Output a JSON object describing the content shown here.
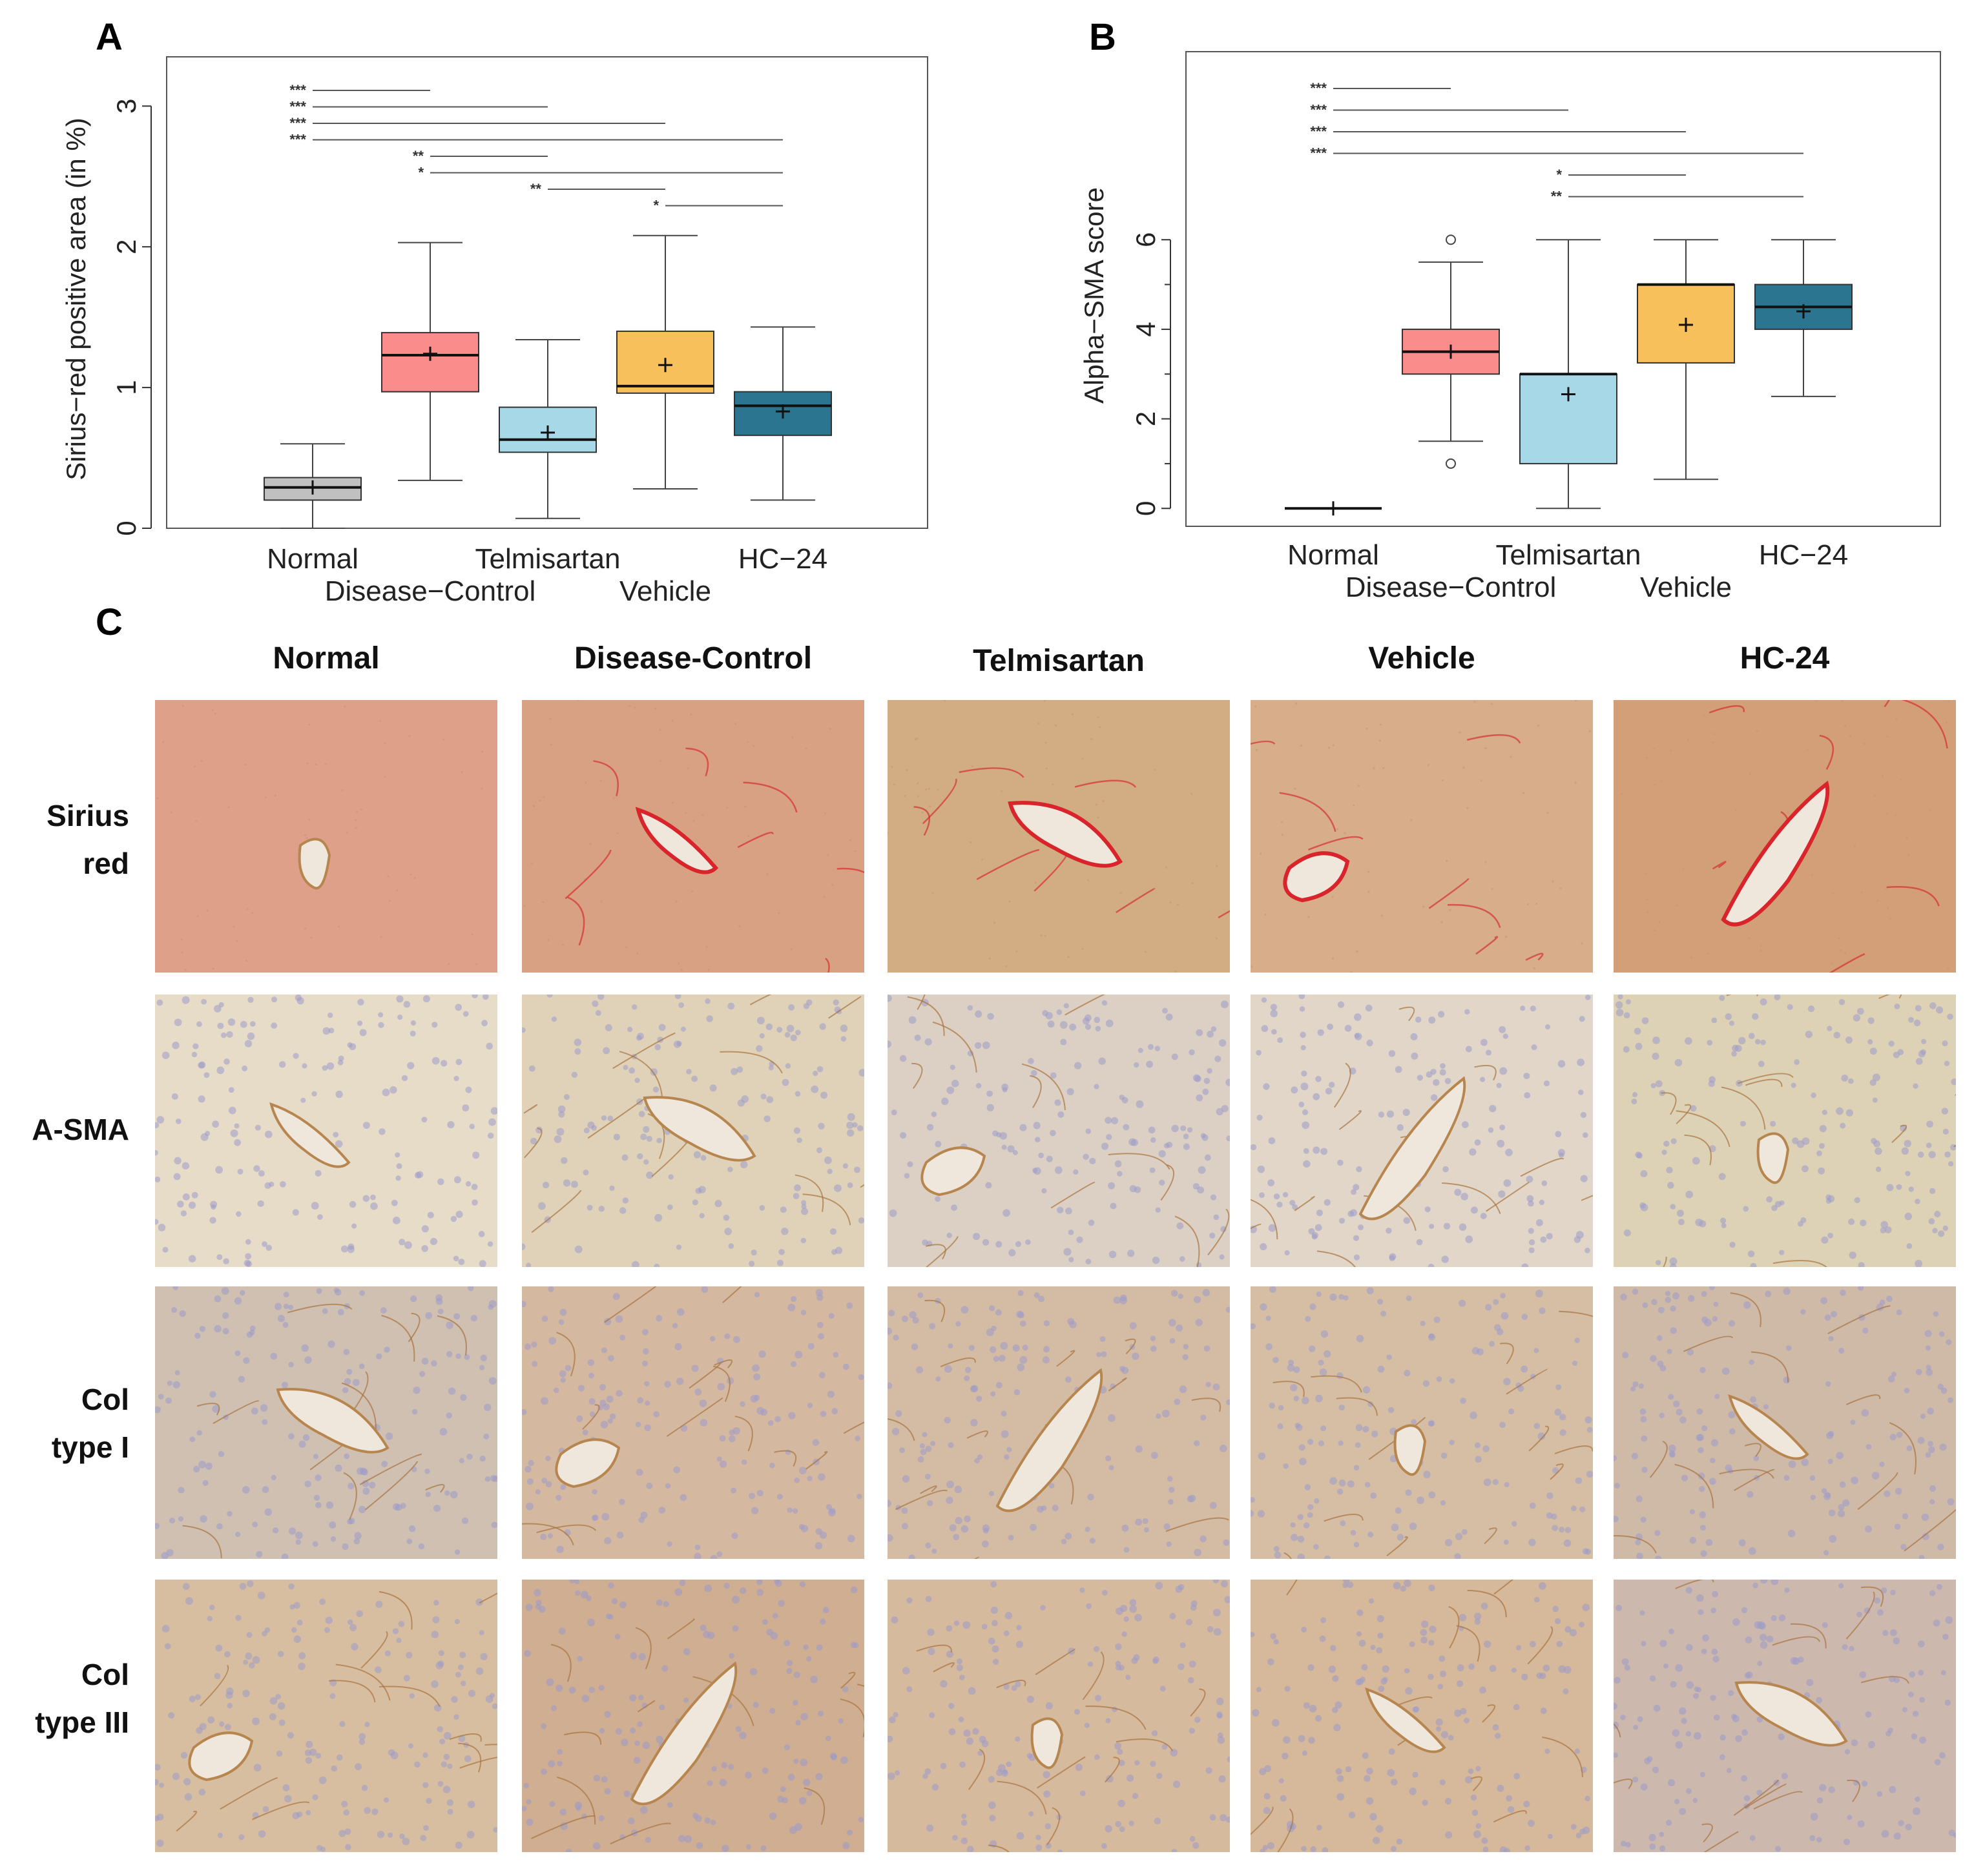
{
  "panels": {
    "a": "A",
    "b": "B",
    "c": "C"
  },
  "colors": {
    "Normal": "#c0c0c0",
    "Disease-Control": "#fa8c8c",
    "Telmisartan": "#a7d8e8",
    "Vehicle": "#f8c05a",
    "HC-24": "#2c7590"
  },
  "chart_data": [
    {
      "type": "box",
      "panel": "A",
      "ylabel": "Sirius−red positive area (in %)",
      "ylim": [
        0,
        3.35
      ],
      "yticks": [
        0,
        1,
        2,
        3
      ],
      "categories": [
        "Normal",
        "Disease−Control",
        "Telmisartan",
        "Vehicle",
        "HC−24"
      ],
      "boxes": [
        {
          "min": 0.0,
          "q1": 0.2,
          "median": 0.29,
          "q3": 0.36,
          "max": 0.6,
          "mean": 0.29
        },
        {
          "min": 0.34,
          "q1": 0.97,
          "median": 1.23,
          "q3": 1.39,
          "max": 2.03,
          "mean": 1.24
        },
        {
          "min": 0.07,
          "q1": 0.54,
          "median": 0.63,
          "q3": 0.86,
          "max": 1.34,
          "mean": 0.68
        },
        {
          "min": 0.28,
          "q1": 0.96,
          "median": 1.01,
          "q3": 1.4,
          "max": 2.08,
          "mean": 1.16
        },
        {
          "min": 0.2,
          "q1": 0.66,
          "median": 0.87,
          "q3": 0.97,
          "max": 1.43,
          "mean": 0.83
        }
      ],
      "significance": [
        {
          "from": 0,
          "to": 1,
          "label": "***"
        },
        {
          "from": 0,
          "to": 2,
          "label": "***"
        },
        {
          "from": 0,
          "to": 3,
          "label": "***"
        },
        {
          "from": 0,
          "to": 4,
          "label": "***"
        },
        {
          "from": 1,
          "to": 2,
          "label": "**"
        },
        {
          "from": 1,
          "to": 4,
          "label": "*"
        },
        {
          "from": 2,
          "to": 3,
          "label": "**"
        },
        {
          "from": 3,
          "to": 4,
          "label": "*"
        }
      ]
    },
    {
      "type": "box",
      "panel": "B",
      "ylabel": "Alpha−SMA score",
      "ylim": [
        -0.4,
        10.2
      ],
      "yticks": [
        0,
        2,
        4,
        6
      ],
      "categories": [
        "Normal",
        "Disease−Control",
        "Telmisartan",
        "Vehicle",
        "HC−24"
      ],
      "boxes": [
        {
          "min": 0,
          "q1": 0,
          "median": 0,
          "q3": 0,
          "max": 0,
          "mean": 0,
          "outliers": []
        },
        {
          "min": 1.5,
          "q1": 3.0,
          "median": 3.5,
          "q3": 4.0,
          "max": 5.5,
          "mean": 3.5,
          "outliers": [
            1,
            6
          ]
        },
        {
          "min": 0,
          "q1": 1.0,
          "median": 3.0,
          "q3": 3.0,
          "max": 6.0,
          "mean": 2.55,
          "outliers": []
        },
        {
          "min": 0.65,
          "q1": 3.25,
          "median": 5.0,
          "q3": 5.0,
          "max": 6.0,
          "mean": 4.1,
          "outliers": []
        },
        {
          "min": 2.5,
          "q1": 4.0,
          "median": 4.5,
          "q3": 5.0,
          "max": 6.0,
          "mean": 4.4,
          "outliers": []
        }
      ],
      "significance": [
        {
          "from": 0,
          "to": 1,
          "label": "***"
        },
        {
          "from": 0,
          "to": 2,
          "label": "***"
        },
        {
          "from": 0,
          "to": 3,
          "label": "***"
        },
        {
          "from": 0,
          "to": 4,
          "label": "***"
        },
        {
          "from": 2,
          "to": 3,
          "label": "*"
        },
        {
          "from": 2,
          "to": 4,
          "label": "**"
        }
      ]
    }
  ],
  "micrographs": {
    "columns": [
      "Normal",
      "Disease-Control",
      "Telmisartan",
      "Vehicle",
      "HC-24"
    ],
    "rows": [
      {
        "label_lines": [
          "Sirius",
          "red"
        ]
      },
      {
        "label_lines": [
          "A-SMA"
        ]
      },
      {
        "label_lines": [
          "Col",
          "type I"
        ]
      },
      {
        "label_lines": [
          "Col",
          "type III"
        ]
      }
    ]
  }
}
